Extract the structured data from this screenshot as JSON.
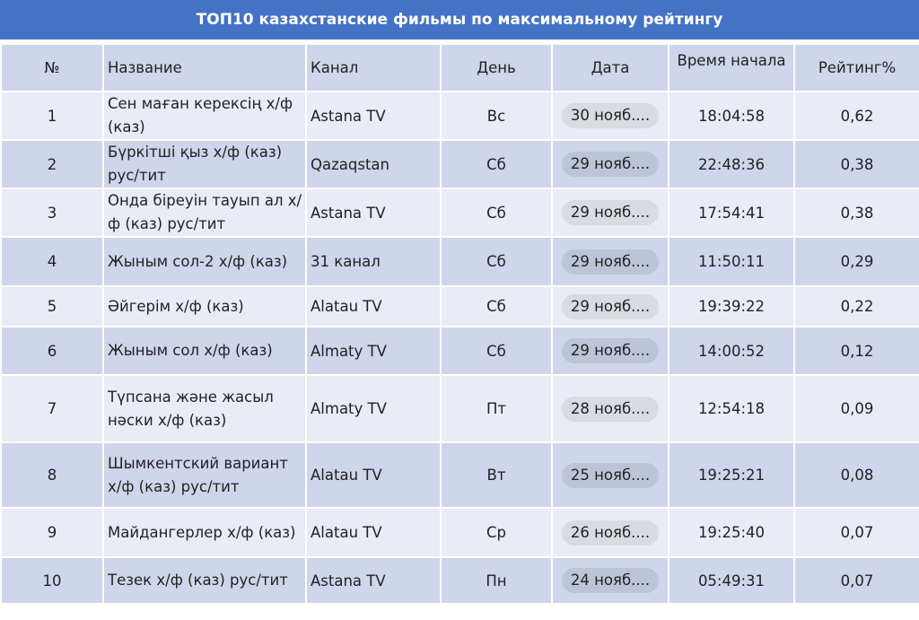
{
  "title": "ТОП10 казахстанские фильмы по максимальному рейтингу",
  "colors": {
    "title_bg": "#4472c4",
    "header_bg": "#cfd5ea",
    "row_odd": "#e9ebf5",
    "row_even": "#cfd5ea"
  },
  "columns": [
    "№",
    "Название",
    "Канал",
    "День",
    "Дата",
    "Время начала",
    "Рейтинг%"
  ],
  "rows": [
    {
      "n": "1",
      "name": "Сен маған керексің х/ф (каз)",
      "channel": "Astana TV",
      "day": "Вс",
      "date": "30 нояб....",
      "time": "18:04:58",
      "rating": "0,62"
    },
    {
      "n": "2",
      "name": "Бүркітші қыз х/ф (каз) рус/тит",
      "channel": "Qazaqstan",
      "day": "Сб",
      "date": "29 нояб....",
      "time": "22:48:36",
      "rating": "0,38"
    },
    {
      "n": "3",
      "name": "Онда біреуін тауып ал х/ф (каз) рус/тит",
      "channel": "Astana TV",
      "day": "Сб",
      "date": "29 нояб....",
      "time": "17:54:41",
      "rating": "0,38"
    },
    {
      "n": "4",
      "name": "Жыным сол-2 х/ф (каз)",
      "channel": "31 канал",
      "day": "Сб",
      "date": "29 нояб....",
      "time": "11:50:11",
      "rating": "0,29"
    },
    {
      "n": "5",
      "name": "Әйгерім х/ф (каз)",
      "channel": "Alatau TV",
      "day": "Сб",
      "date": "29 нояб....",
      "time": "19:39:22",
      "rating": "0,22"
    },
    {
      "n": "6",
      "name": "Жыным сол х/ф (каз)",
      "channel": "Almaty TV",
      "day": "Сб",
      "date": "29 нояб....",
      "time": "14:00:52",
      "rating": "0,12"
    },
    {
      "n": "7",
      "name": "Түпсана және жасыл нәски х/ф (каз)",
      "channel": "Almaty TV",
      "day": "Пт",
      "date": "28 нояб....",
      "time": "12:54:18",
      "rating": "0,09"
    },
    {
      "n": "8",
      "name": "Шымкентский вариант х/ф (каз) рус/тит",
      "channel": "Alatau TV",
      "day": "Вт",
      "date": "25 нояб....",
      "time": "19:25:21",
      "rating": "0,08"
    },
    {
      "n": "9",
      "name": "Майдангерлер х/ф (каз)",
      "channel": "Alatau TV",
      "day": "Ср",
      "date": "26 нояб....",
      "time": "19:25:40",
      "rating": "0,07"
    },
    {
      "n": "10",
      "name": "Тезек х/ф (каз) рус/тит",
      "channel": "Astana TV",
      "day": "Пн",
      "date": "24 нояб....",
      "time": "05:49:31",
      "rating": "0,07"
    }
  ]
}
